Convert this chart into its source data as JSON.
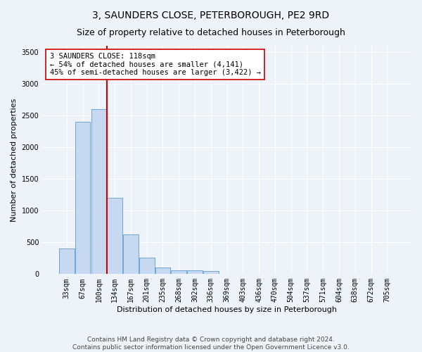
{
  "title": "3, SAUNDERS CLOSE, PETERBOROUGH, PE2 9RD",
  "subtitle": "Size of property relative to detached houses in Peterborough",
  "xlabel": "Distribution of detached houses by size in Peterborough",
  "ylabel": "Number of detached properties",
  "categories": [
    "33sqm",
    "67sqm",
    "100sqm",
    "134sqm",
    "167sqm",
    "201sqm",
    "235sqm",
    "268sqm",
    "302sqm",
    "336sqm",
    "369sqm",
    "403sqm",
    "436sqm",
    "470sqm",
    "504sqm",
    "537sqm",
    "571sqm",
    "604sqm",
    "638sqm",
    "672sqm",
    "705sqm"
  ],
  "values": [
    400,
    2400,
    2600,
    1200,
    620,
    255,
    100,
    62,
    60,
    50,
    0,
    0,
    0,
    0,
    0,
    0,
    0,
    0,
    0,
    0,
    0
  ],
  "bar_color": "#c6d9f0",
  "bar_edge_color": "#5b9bd5",
  "vline_x": 2.5,
  "vline_color": "#cc0000",
  "annotation_text": "3 SAUNDERS CLOSE: 118sqm\n← 54% of detached houses are smaller (4,141)\n45% of semi-detached houses are larger (3,422) →",
  "annotation_box_color": "#ffffff",
  "annotation_box_edge": "#cc0000",
  "ylim": [
    0,
    3600
  ],
  "yticks": [
    0,
    500,
    1000,
    1500,
    2000,
    2500,
    3000,
    3500
  ],
  "background_color": "#eef3f9",
  "grid_color": "#ffffff",
  "footnote": "Contains HM Land Registry data © Crown copyright and database right 2024.\nContains public sector information licensed under the Open Government Licence v3.0.",
  "title_fontsize": 10,
  "subtitle_fontsize": 9,
  "xlabel_fontsize": 8,
  "ylabel_fontsize": 8,
  "annotation_fontsize": 7.5,
  "footnote_fontsize": 6.5,
  "tick_fontsize": 7
}
